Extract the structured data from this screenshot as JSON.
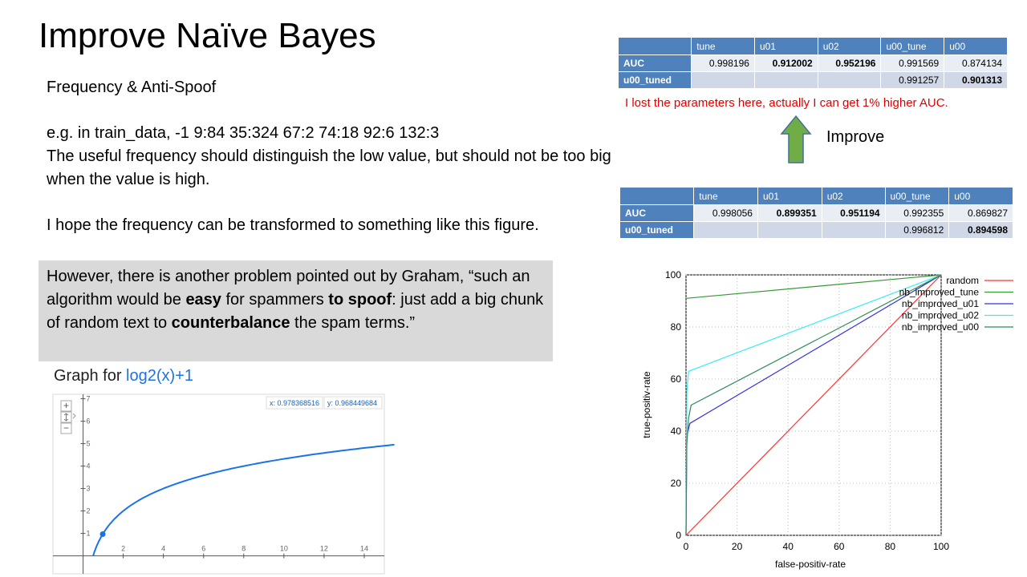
{
  "slide": {
    "title": "Improve Naïve Bayes",
    "subtitle": "Frequency & Anti-Spoof",
    "example_line": "e.g. in train_data, -1 9:84 35:324 67:2 74:18 92:6 132:3",
    "useful_text": "The useful frequency should distinguish the low value, but should not be too big when the value is high.",
    "hope_text": "I hope the frequency can be transformed to something like this figure.",
    "quote": {
      "p1": "However, there is another problem pointed out by Graham, “such an algorithm would be ",
      "b1": "easy",
      "p2": " for spammers ",
      "b2": "to spoof",
      "p3": ": just add a big chunk of random text to ",
      "b3": "counterbalance",
      "p4": " the spam terms.”"
    },
    "lost_note": "I lost the parameters here, actually I can get 1% higher AUC.",
    "improve_label": "Improve",
    "colors": {
      "table_header": "#4f81bd",
      "note_red": "#e00000",
      "arrow_green": "#70ad47",
      "quote_bg": "#d9d9d9"
    }
  },
  "table_top": {
    "headers": [
      "",
      "tune",
      "u01",
      "u02",
      "u00_tune",
      "u00"
    ],
    "rows": [
      {
        "label": "AUC",
        "cells": [
          "0.998196",
          "0.912002",
          "0.952196",
          "0.991569",
          "0.874134"
        ]
      },
      {
        "label": "u00_tuned",
        "cells": [
          "",
          "",
          "",
          "0.991257",
          "0.901313"
        ]
      }
    ]
  },
  "table_bottom": {
    "headers": [
      "",
      "tune",
      "u01",
      "u02",
      "u00_tune",
      "u00"
    ],
    "rows": [
      {
        "label": "AUC",
        "cells": [
          "0.998056",
          "0.899351",
          "0.951194",
          "0.992355",
          "0.869827"
        ]
      },
      {
        "label": "u00_tuned",
        "cells": [
          "",
          "",
          "",
          "0.996812",
          "0.894598"
        ]
      }
    ]
  },
  "graph": {
    "title_prefix": "Graph for ",
    "title_fn": "log2(x)+1",
    "x_readout": "x: 0.978368516",
    "y_readout": "y: 0.968449684",
    "zoom_in": "+",
    "zoom_out": "−"
  },
  "chart_data": [
    {
      "type": "line",
      "title": "",
      "xlabel": "",
      "ylabel": "",
      "xlim": [
        -1.5,
        15
      ],
      "ylim": [
        -0.8,
        7.2
      ],
      "x_ticks": [
        "2",
        "4",
        "6",
        "8",
        "10",
        "12",
        "14"
      ],
      "y_ticks": [
        "1",
        "2",
        "3",
        "4",
        "5",
        "6",
        "7"
      ],
      "series": [
        {
          "function": "log2(x)+1",
          "x": [
            0.5,
            1,
            2,
            4,
            6,
            8,
            10,
            12,
            14,
            15.5
          ],
          "values": [
            0,
            1,
            2,
            3,
            3.585,
            4,
            4.322,
            4.585,
            4.807,
            4.954
          ]
        }
      ],
      "highlight_point": [
        0.978,
        0.968
      ],
      "colors": {
        "curve": "#1a73e8"
      }
    },
    {
      "type": "line",
      "title": "",
      "xlabel": "false-positiv-rate",
      "ylabel": "true-positiv-rate",
      "xlim": [
        0,
        100
      ],
      "ylim": [
        0,
        100
      ],
      "x_ticks": [
        "0",
        "20",
        "40",
        "60",
        "80",
        "100"
      ],
      "y_ticks": [
        "0",
        "20",
        "40",
        "60",
        "80",
        "100"
      ],
      "legend_position": "top-right",
      "series": [
        {
          "name": "random",
          "color": "#ff3333",
          "x": [
            0,
            100
          ],
          "values": [
            0,
            100
          ]
        },
        {
          "name": "nb_improved_tune",
          "color": "#339933",
          "x": [
            0,
            100
          ],
          "values": [
            91,
            100
          ]
        },
        {
          "name": "nb_improved_u01",
          "color": "#3333dd",
          "x": [
            0,
            0.3,
            1.5,
            100
          ],
          "values": [
            0,
            38,
            43,
            100
          ]
        },
        {
          "name": "nb_improved_u02",
          "color": "#33eeee",
          "x": [
            0,
            0.3,
            1,
            100
          ],
          "values": [
            0,
            55,
            63,
            100
          ]
        },
        {
          "name": "nb_improved_u00",
          "color": "#2e8b57",
          "x": [
            0,
            0.3,
            1,
            2,
            100
          ],
          "values": [
            0,
            35,
            45,
            50,
            100
          ]
        }
      ]
    }
  ]
}
